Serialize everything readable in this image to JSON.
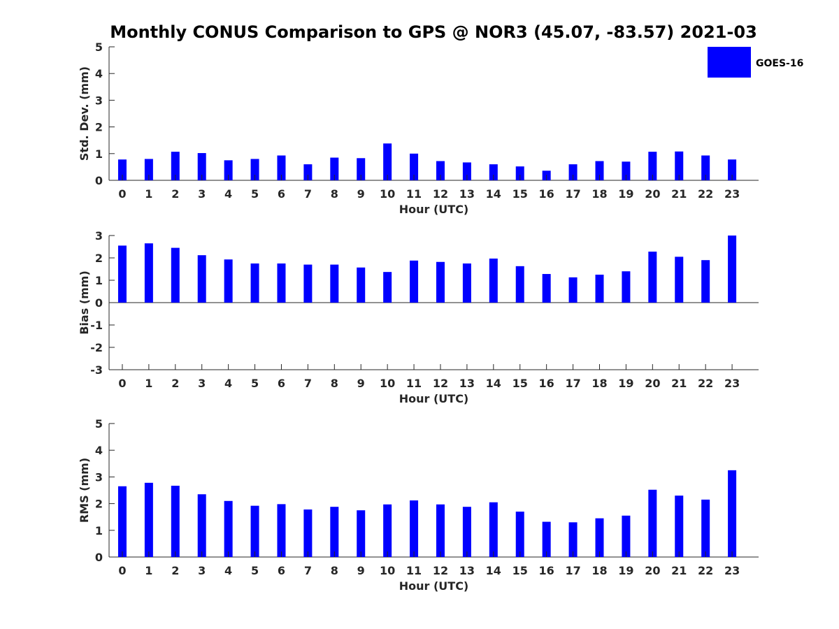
{
  "chart_data": {
    "title": "Monthly CONUS Comparison to GPS @ NOR3 (45.07, -83.57) 2021-03",
    "legend": [
      "GOES-16"
    ],
    "legend_position": "top-right",
    "bar_color": "#0000ff",
    "panels": [
      {
        "type": "bar",
        "xlabel": "Hour (UTC)",
        "ylabel": "Std. Dev. (mm)",
        "ylim": [
          0,
          5
        ],
        "yticks": [
          0,
          1,
          2,
          3,
          4,
          5
        ],
        "categories": [
          "0",
          "1",
          "2",
          "3",
          "4",
          "5",
          "6",
          "7",
          "8",
          "9",
          "10",
          "11",
          "12",
          "13",
          "14",
          "15",
          "16",
          "17",
          "18",
          "19",
          "20",
          "21",
          "22",
          "23"
        ],
        "series": [
          {
            "name": "GOES-16",
            "values": [
              0.78,
              0.8,
              1.07,
              1.02,
              0.75,
              0.8,
              0.93,
              0.6,
              0.85,
              0.83,
              1.38,
              1.0,
              0.72,
              0.67,
              0.6,
              0.52,
              0.36,
              0.6,
              0.72,
              0.7,
              1.07,
              1.08,
              0.93,
              0.78
            ]
          }
        ]
      },
      {
        "type": "bar",
        "xlabel": "Hour (UTC)",
        "ylabel": "Bias (mm)",
        "ylim": [
          -3,
          3
        ],
        "yticks": [
          -3,
          -2,
          -1,
          0,
          1,
          2,
          3
        ],
        "categories": [
          "0",
          "1",
          "2",
          "3",
          "4",
          "5",
          "6",
          "7",
          "8",
          "9",
          "10",
          "11",
          "12",
          "13",
          "14",
          "15",
          "16",
          "17",
          "18",
          "19",
          "20",
          "21",
          "22",
          "23"
        ],
        "series": [
          {
            "name": "GOES-16",
            "values": [
              2.55,
              2.65,
              2.45,
              2.12,
              1.93,
              1.75,
              1.75,
              1.7,
              1.7,
              1.57,
              1.37,
              1.88,
              1.82,
              1.75,
              1.97,
              1.63,
              1.28,
              1.13,
              1.25,
              1.4,
              2.28,
              2.05,
              1.9,
              3.0
            ]
          }
        ]
      },
      {
        "type": "bar",
        "xlabel": "Hour (UTC)",
        "ylabel": "RMS (mm)",
        "ylim": [
          0,
          5
        ],
        "yticks": [
          0,
          1,
          2,
          3,
          4,
          5
        ],
        "categories": [
          "0",
          "1",
          "2",
          "3",
          "4",
          "5",
          "6",
          "7",
          "8",
          "9",
          "10",
          "11",
          "12",
          "13",
          "14",
          "15",
          "16",
          "17",
          "18",
          "19",
          "20",
          "21",
          "22",
          "23"
        ],
        "series": [
          {
            "name": "GOES-16",
            "values": [
              2.65,
              2.78,
              2.67,
              2.35,
              2.1,
              1.92,
              1.98,
              1.78,
              1.88,
              1.75,
              1.97,
              2.12,
              1.97,
              1.88,
              2.05,
              1.7,
              1.32,
              1.3,
              1.45,
              1.55,
              2.52,
              2.3,
              2.15,
              3.25
            ]
          }
        ]
      }
    ]
  }
}
